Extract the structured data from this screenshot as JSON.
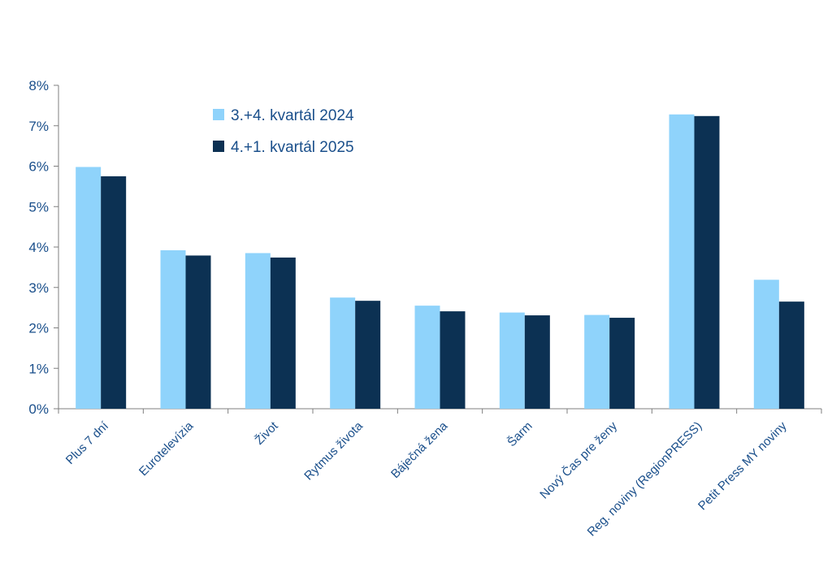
{
  "chart_data": {
    "type": "bar",
    "title": "",
    "xlabel": "",
    "ylabel": "",
    "ylim": [
      0,
      8
    ],
    "y_ticks": [
      "0%",
      "1%",
      "2%",
      "3%",
      "4%",
      "5%",
      "6%",
      "7%",
      "8%"
    ],
    "categories": [
      "Plus 7 dní",
      "Eurotelevízia",
      "Život",
      "Rytmus života",
      "Báječná žena",
      "Šarm",
      "Nový Čas pre ženy",
      "Reg. noviny (RegionPRESS)",
      "Petit Press MY noviny"
    ],
    "series": [
      {
        "name": "3.+4. kvartál 2024",
        "color": "#8fd3fb",
        "values": [
          5.98,
          3.92,
          3.85,
          2.75,
          2.55,
          2.38,
          2.32,
          7.28,
          3.19
        ]
      },
      {
        "name": "4.+1. kvartál 2025",
        "color": "#0c3153",
        "values": [
          5.75,
          3.79,
          3.74,
          2.67,
          2.41,
          2.31,
          2.25,
          7.24,
          2.65
        ]
      }
    ],
    "legend_position": "top-left-inside",
    "grid": false
  },
  "colors": {
    "axis": "#7f7f7f",
    "label": "#1a4f8b"
  }
}
